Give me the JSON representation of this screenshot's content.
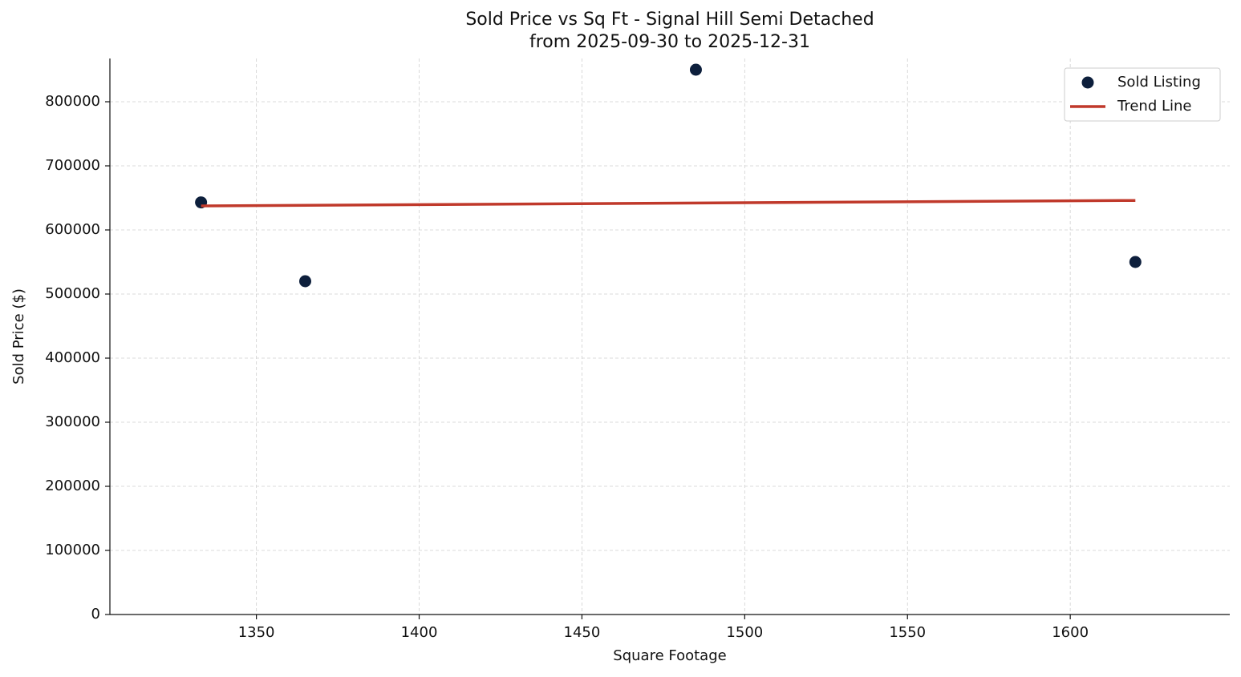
{
  "chart_data": {
    "type": "scatter",
    "title": "Sold Price vs Sq Ft - Signal Hill Semi Detached",
    "subtitle": "from 2025-09-30 to 2025-12-31",
    "x_label": "Square Footage",
    "y_label": "Sold Price ($)",
    "xlim": [
      1305,
      1649
    ],
    "xticks": [
      1350,
      1400,
      1450,
      1500,
      1550,
      1600
    ],
    "ylim": [
      0,
      867500
    ],
    "yticks": [
      0,
      100000,
      200000,
      300000,
      400000,
      500000,
      600000,
      700000,
      800000
    ],
    "grid": true,
    "legend": "upper right",
    "series": [
      {
        "name": "Sold Listing",
        "type": "scatter",
        "color": "#0d1f3c",
        "x": [
          1333,
          1365,
          1485,
          1620
        ],
        "values": [
          643000,
          520000,
          850000,
          550000
        ]
      },
      {
        "name": "Trend Line",
        "type": "line",
        "color": "#c0392b",
        "x": [
          1333,
          1620
        ],
        "values": [
          637500,
          646000
        ]
      }
    ]
  }
}
